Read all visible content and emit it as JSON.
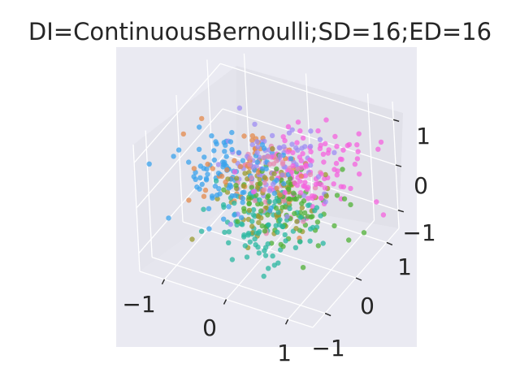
{
  "chart_data": {
    "type": "scatter",
    "projection": "3d",
    "title": "DI=ContinuousBernoulli;SD=16;ED=16",
    "xlabel": "",
    "ylabel": "",
    "zlabel": "",
    "xticks": [
      "−1",
      "0",
      "1"
    ],
    "yticks": [
      "−1",
      "0",
      "1"
    ],
    "zticks": [
      "−1",
      "0",
      "1"
    ],
    "xlim": [
      -1.4,
      1.4
    ],
    "ylim": [
      -1.4,
      1.4
    ],
    "zlim": [
      -1.4,
      1.4
    ],
    "grid": true,
    "legend": "none",
    "marker_alpha": 0.75,
    "series": [
      {
        "color": "#f461dd",
        "center": [
          0.55,
          0.35,
          0.35
        ],
        "count": 110
      },
      {
        "color": "#3ba3ec",
        "center": [
          -0.55,
          0.0,
          0.05
        ],
        "count": 100
      },
      {
        "color": "#2ab7a0",
        "center": [
          0.15,
          -0.45,
          -0.45
        ],
        "count": 95
      },
      {
        "color": "#4fb036",
        "center": [
          0.35,
          -0.15,
          -0.15
        ],
        "count": 90
      },
      {
        "color": "#9a9a2e",
        "center": [
          0.15,
          -0.3,
          0.0
        ],
        "count": 70
      },
      {
        "color": "#e48a4c",
        "center": [
          -0.4,
          0.1,
          -0.05
        ],
        "count": 55
      },
      {
        "color": "#9e8cf3",
        "center": [
          0.0,
          0.35,
          0.3
        ],
        "count": 75
      },
      {
        "color": "#e68ab0",
        "center": [
          0.1,
          0.2,
          0.1
        ],
        "count": 45
      }
    ]
  }
}
